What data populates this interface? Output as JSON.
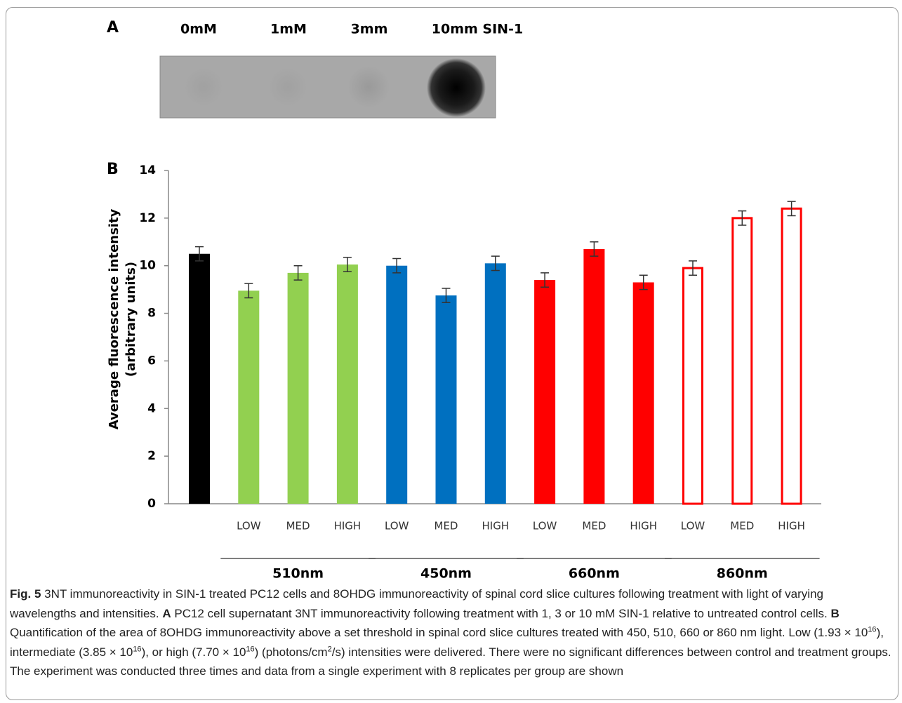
{
  "panel_a": {
    "label": "A",
    "lanes": [
      "0mM",
      "1mM",
      "3mm",
      "10mm SIN-1"
    ]
  },
  "chart_data": {
    "type": "bar",
    "label": "B",
    "y_label": [
      "Average fluorescence intensity",
      "(arbitrary units)"
    ],
    "categories": [
      null,
      "LOW",
      "MED",
      "HIGH",
      "LOW",
      "MED",
      "HIGH",
      "LOW",
      "MED",
      "HIGH",
      "LOW",
      "MED",
      "HIGH"
    ],
    "groups": [
      "510nm",
      "450nm",
      "660nm",
      "860nm"
    ],
    "values": [
      10.5,
      8.95,
      9.7,
      10.05,
      10.0,
      8.75,
      10.1,
      9.4,
      10.7,
      9.3,
      9.9,
      12.0,
      12.4
    ],
    "errors": [
      0.3,
      0.3,
      0.3,
      0.3,
      0.3,
      0.3,
      0.3,
      0.3,
      0.3,
      0.3,
      0.3,
      0.3,
      0.3
    ],
    "colors": [
      "#000000",
      "#92d050",
      "#92d050",
      "#92d050",
      "#0070c0",
      "#0070c0",
      "#0070c0",
      "#ff0000",
      "#ff0000",
      "#ff0000",
      "#ff0000",
      "#ff0000",
      "#ff0000"
    ],
    "hollow": [
      false,
      false,
      false,
      false,
      false,
      false,
      false,
      false,
      false,
      false,
      true,
      true,
      true
    ],
    "ylim": [
      0,
      14
    ],
    "yticks": [
      0,
      2,
      4,
      6,
      8,
      10,
      12,
      14
    ]
  },
  "caption": [
    "Fig. 5",
    "  3NT immunoreactivity in SIN-1 treated PC12 cells and 8OHDG immunoreactivity of spinal cord slice cultures following treatment with light of varying wavelengths and intensities. ",
    "A",
    " PC12 cell supernatant 3NT immunoreactivity following treatment with 1, 3 or 10 mM SIN-1 relative to untreated control cells. ",
    "B",
    " Quantification of the area of 8OHDG immunoreactivity above a set threshold in spinal cord slice cultures treated with 450, 510, 660 or 860 nm light. Low (1.93 × 10",
    "16",
    "), intermediate (3.85 × 10",
    "16",
    "), or high (7.70 × 10",
    "16",
    ") (photons/cm",
    "2",
    "/s) intensities were delivered. There were no significant differences between control and treatment groups. The experiment was conducted three times and data from a single experiment with 8 replicates per group are shown"
  ]
}
